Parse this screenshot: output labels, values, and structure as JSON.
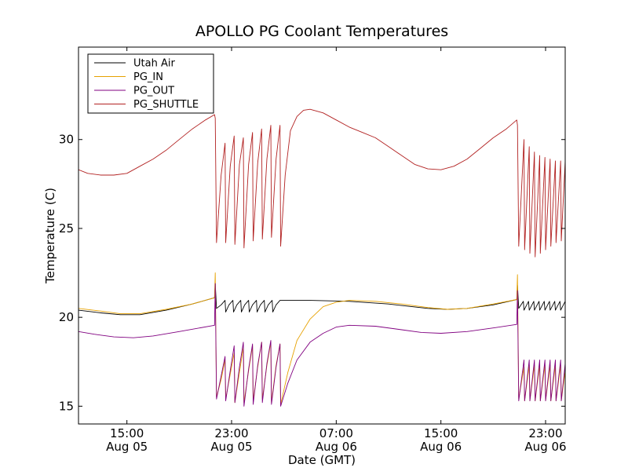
{
  "chart_data": {
    "type": "line",
    "title": "APOLLO PG Coolant Temperatures",
    "xlabel": "Date (GMT)",
    "ylabel": "Temperature (C)",
    "xlim": [
      11.3,
      48.5
    ],
    "ylim": [
      14,
      35.2
    ],
    "grid": false,
    "legend_position": "upper-left",
    "x_units": "hours since 2013-08-05 00:00 GMT",
    "x_ticks": [
      {
        "value": 15,
        "line1": "15:00",
        "line2": "Aug 05"
      },
      {
        "value": 23,
        "line1": "23:00",
        "line2": "Aug 05"
      },
      {
        "value": 31,
        "line1": "07:00",
        "line2": "Aug 06"
      },
      {
        "value": 39,
        "line1": "15:00",
        "line2": "Aug 06"
      },
      {
        "value": 47,
        "line1": "23:00",
        "line2": "Aug 06"
      }
    ],
    "y_ticks": [
      15,
      20,
      25,
      30
    ],
    "series": [
      {
        "name": "Utah Air",
        "color": "#000000",
        "points": [
          [
            11.3,
            20.4
          ],
          [
            13,
            20.25
          ],
          [
            14.5,
            20.15
          ],
          [
            16,
            20.15
          ],
          [
            18,
            20.4
          ],
          [
            20,
            20.75
          ],
          [
            21.7,
            21.1
          ],
          [
            21.75,
            21.9
          ],
          [
            21.85,
            20.5
          ],
          [
            22.2,
            20.7
          ],
          [
            22.5,
            20.95
          ],
          [
            22.55,
            20.3
          ],
          [
            22.8,
            20.7
          ],
          [
            23.1,
            20.95
          ],
          [
            23.15,
            20.3
          ],
          [
            23.4,
            20.7
          ],
          [
            23.7,
            20.95
          ],
          [
            23.75,
            20.3
          ],
          [
            24.0,
            20.7
          ],
          [
            24.3,
            20.95
          ],
          [
            24.35,
            20.3
          ],
          [
            24.6,
            20.7
          ],
          [
            24.9,
            20.95
          ],
          [
            24.95,
            20.3
          ],
          [
            25.2,
            20.7
          ],
          [
            25.5,
            20.95
          ],
          [
            25.55,
            20.3
          ],
          [
            25.8,
            20.7
          ],
          [
            26.1,
            20.95
          ],
          [
            26.15,
            20.3
          ],
          [
            26.4,
            20.7
          ],
          [
            26.7,
            20.95
          ],
          [
            29,
            20.95
          ],
          [
            32,
            20.9
          ],
          [
            35,
            20.75
          ],
          [
            38,
            20.5
          ],
          [
            39.5,
            20.45
          ],
          [
            41,
            20.5
          ],
          [
            43,
            20.7
          ],
          [
            44.8,
            21.0
          ],
          [
            44.85,
            21.8
          ],
          [
            44.95,
            20.5
          ],
          [
            45.3,
            20.9
          ],
          [
            45.35,
            20.4
          ],
          [
            45.7,
            20.9
          ],
          [
            45.75,
            20.4
          ],
          [
            46.1,
            20.9
          ],
          [
            46.15,
            20.4
          ],
          [
            46.5,
            20.9
          ],
          [
            46.55,
            20.4
          ],
          [
            46.9,
            20.9
          ],
          [
            46.95,
            20.4
          ],
          [
            47.3,
            20.9
          ],
          [
            47.35,
            20.4
          ],
          [
            47.7,
            20.9
          ],
          [
            47.75,
            20.4
          ],
          [
            48.1,
            20.9
          ],
          [
            48.15,
            20.4
          ],
          [
            48.5,
            20.9
          ]
        ]
      },
      {
        "name": "PG_IN",
        "color": "#e6a100",
        "points": [
          [
            11.3,
            20.5
          ],
          [
            13,
            20.35
          ],
          [
            14.5,
            20.2
          ],
          [
            16,
            20.2
          ],
          [
            18,
            20.45
          ],
          [
            20,
            20.75
          ],
          [
            21.7,
            21.1
          ],
          [
            21.75,
            22.5
          ],
          [
            21.85,
            15.5
          ],
          [
            22.2,
            16.5
          ],
          [
            22.5,
            17.6
          ],
          [
            22.55,
            15.4
          ],
          [
            22.9,
            16.8
          ],
          [
            23.2,
            18.0
          ],
          [
            23.25,
            15.2
          ],
          [
            23.6,
            16.9
          ],
          [
            23.9,
            18.3
          ],
          [
            23.95,
            15.2
          ],
          [
            24.3,
            17.0
          ],
          [
            24.6,
            18.4
          ],
          [
            24.65,
            15.3
          ],
          [
            25.0,
            17.2
          ],
          [
            25.3,
            18.6
          ],
          [
            25.35,
            15.4
          ],
          [
            25.7,
            17.3
          ],
          [
            26.0,
            18.6
          ],
          [
            26.05,
            15.2
          ],
          [
            26.4,
            17.3
          ],
          [
            26.7,
            18.5
          ],
          [
            26.75,
            15.1
          ],
          [
            27.3,
            16.9
          ],
          [
            28,
            18.7
          ],
          [
            29,
            19.9
          ],
          [
            30,
            20.6
          ],
          [
            31,
            20.85
          ],
          [
            32,
            20.95
          ],
          [
            34,
            20.9
          ],
          [
            36,
            20.75
          ],
          [
            38,
            20.55
          ],
          [
            39.5,
            20.45
          ],
          [
            41,
            20.5
          ],
          [
            43,
            20.75
          ],
          [
            44.8,
            21.0
          ],
          [
            44.85,
            22.4
          ],
          [
            44.95,
            15.4
          ],
          [
            45.35,
            17.2
          ],
          [
            45.4,
            15.3
          ],
          [
            45.75,
            17.3
          ],
          [
            45.8,
            15.3
          ],
          [
            46.15,
            17.3
          ],
          [
            46.2,
            15.3
          ],
          [
            46.55,
            17.3
          ],
          [
            46.6,
            15.3
          ],
          [
            46.95,
            17.3
          ],
          [
            47.0,
            15.3
          ],
          [
            47.35,
            17.3
          ],
          [
            47.4,
            15.3
          ],
          [
            47.75,
            17.3
          ],
          [
            47.8,
            15.3
          ],
          [
            48.15,
            17.3
          ],
          [
            48.2,
            15.3
          ],
          [
            48.5,
            17.0
          ]
        ]
      },
      {
        "name": "PG_OUT",
        "color": "#800080",
        "points": [
          [
            11.3,
            19.2
          ],
          [
            12.5,
            19.05
          ],
          [
            14,
            18.9
          ],
          [
            15.5,
            18.85
          ],
          [
            17,
            18.95
          ],
          [
            19,
            19.2
          ],
          [
            21.7,
            19.55
          ],
          [
            21.75,
            21.9
          ],
          [
            21.85,
            15.4
          ],
          [
            22.2,
            16.7
          ],
          [
            22.5,
            17.8
          ],
          [
            22.55,
            15.3
          ],
          [
            22.9,
            17.0
          ],
          [
            23.2,
            18.4
          ],
          [
            23.25,
            15.2
          ],
          [
            23.6,
            17.2
          ],
          [
            23.9,
            18.6
          ],
          [
            23.95,
            15.0
          ],
          [
            24.3,
            17.1
          ],
          [
            24.6,
            18.5
          ],
          [
            24.65,
            15.1
          ],
          [
            25.0,
            17.3
          ],
          [
            25.3,
            18.6
          ],
          [
            25.35,
            15.2
          ],
          [
            25.7,
            17.4
          ],
          [
            26.0,
            18.7
          ],
          [
            26.05,
            15.1
          ],
          [
            26.4,
            17.2
          ],
          [
            26.7,
            18.5
          ],
          [
            26.75,
            15.0
          ],
          [
            27.3,
            16.3
          ],
          [
            28,
            17.6
          ],
          [
            29,
            18.6
          ],
          [
            30,
            19.1
          ],
          [
            31,
            19.45
          ],
          [
            32,
            19.55
          ],
          [
            34,
            19.5
          ],
          [
            36,
            19.3
          ],
          [
            37.5,
            19.15
          ],
          [
            39,
            19.1
          ],
          [
            41,
            19.2
          ],
          [
            43,
            19.4
          ],
          [
            44.8,
            19.6
          ],
          [
            44.85,
            21.5
          ],
          [
            44.95,
            15.3
          ],
          [
            45.35,
            17.6
          ],
          [
            45.4,
            15.3
          ],
          [
            45.75,
            17.6
          ],
          [
            45.8,
            15.3
          ],
          [
            46.15,
            17.6
          ],
          [
            46.2,
            15.3
          ],
          [
            46.55,
            17.6
          ],
          [
            46.6,
            15.3
          ],
          [
            46.95,
            17.6
          ],
          [
            47.0,
            15.3
          ],
          [
            47.35,
            17.6
          ],
          [
            47.4,
            15.3
          ],
          [
            47.75,
            17.6
          ],
          [
            47.8,
            15.3
          ],
          [
            48.15,
            17.6
          ],
          [
            48.2,
            15.3
          ],
          [
            48.5,
            17.4
          ]
        ]
      },
      {
        "name": "PG_SHUTTLE",
        "color": "#b22222",
        "points": [
          [
            11.3,
            28.3
          ],
          [
            12,
            28.1
          ],
          [
            13,
            28.0
          ],
          [
            14,
            28.0
          ],
          [
            15,
            28.1
          ],
          [
            16,
            28.5
          ],
          [
            17,
            28.9
          ],
          [
            18,
            29.4
          ],
          [
            19,
            30.0
          ],
          [
            20,
            30.6
          ],
          [
            21,
            31.1
          ],
          [
            21.7,
            31.4
          ],
          [
            21.75,
            31.2
          ],
          [
            21.85,
            24.2
          ],
          [
            22.2,
            28.0
          ],
          [
            22.5,
            29.8
          ],
          [
            22.55,
            24.2
          ],
          [
            22.9,
            28.5
          ],
          [
            23.2,
            30.2
          ],
          [
            23.25,
            24.1
          ],
          [
            23.6,
            28.6
          ],
          [
            23.9,
            30.1
          ],
          [
            23.95,
            23.9
          ],
          [
            24.3,
            28.6
          ],
          [
            24.6,
            30.4
          ],
          [
            24.65,
            24.3
          ],
          [
            25.0,
            28.7
          ],
          [
            25.3,
            30.6
          ],
          [
            25.35,
            24.4
          ],
          [
            25.7,
            28.9
          ],
          [
            26.0,
            30.8
          ],
          [
            26.05,
            24.5
          ],
          [
            26.4,
            28.9
          ],
          [
            26.7,
            30.8
          ],
          [
            26.75,
            24.0
          ],
          [
            27.1,
            28.0
          ],
          [
            27.5,
            30.5
          ],
          [
            28,
            31.3
          ],
          [
            28.5,
            31.65
          ],
          [
            29,
            31.7
          ],
          [
            30,
            31.5
          ],
          [
            31,
            31.1
          ],
          [
            32,
            30.7
          ],
          [
            33,
            30.4
          ],
          [
            34,
            30.1
          ],
          [
            35,
            29.6
          ],
          [
            36,
            29.1
          ],
          [
            37,
            28.6
          ],
          [
            38,
            28.35
          ],
          [
            39,
            28.3
          ],
          [
            40,
            28.5
          ],
          [
            41,
            28.9
          ],
          [
            42,
            29.5
          ],
          [
            43,
            30.1
          ],
          [
            44,
            30.6
          ],
          [
            44.8,
            31.1
          ],
          [
            44.85,
            30.8
          ],
          [
            44.95,
            24.0
          ],
          [
            45.35,
            30.0
          ],
          [
            45.4,
            23.8
          ],
          [
            45.75,
            29.6
          ],
          [
            45.8,
            23.6
          ],
          [
            46.15,
            29.3
          ],
          [
            46.2,
            23.4
          ],
          [
            46.55,
            29.1
          ],
          [
            46.6,
            23.6
          ],
          [
            46.95,
            29.0
          ],
          [
            47.0,
            23.8
          ],
          [
            47.35,
            28.9
          ],
          [
            47.4,
            24.0
          ],
          [
            47.75,
            28.8
          ],
          [
            47.8,
            24.2
          ],
          [
            48.15,
            28.8
          ],
          [
            48.2,
            24.3
          ],
          [
            48.5,
            28.8
          ]
        ]
      }
    ]
  }
}
